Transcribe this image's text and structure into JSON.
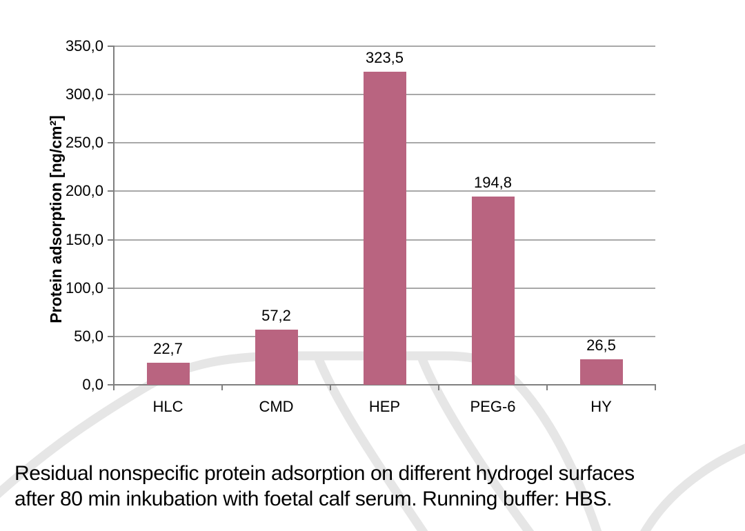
{
  "chart_data": {
    "type": "bar",
    "title": "",
    "categories": [
      "HLC",
      "CMD",
      "HEP",
      "PEG-6",
      "HY"
    ],
    "values": [
      22.7,
      57.2,
      323.5,
      194.8,
      26.5
    ],
    "bar_labels": [
      "22,7",
      "57,2",
      "323,5",
      "194,8",
      "26,5"
    ],
    "xlabel": "",
    "ylabel": "Protein adsorption [ng/cm²]",
    "ylim": [
      0,
      350
    ],
    "ytick_interval": 50,
    "ytick_labels": [
      "0,0",
      "50,0",
      "100,0",
      "150,0",
      "200,0",
      "250,0",
      "300,0",
      "350,0"
    ],
    "grid": true,
    "legend": false,
    "colors": {
      "bar": "#b96480",
      "gridline": "#a8a8a8",
      "axis": "#7f7f7f",
      "text": "#000000",
      "watermark": "#e6e6e6"
    }
  },
  "caption": {
    "line1": "Residual nonspecific protein adsorption on different hydrogel surfaces",
    "line2": "after 80 min inkubation with foetal calf serum. Running buffer: HBS."
  }
}
